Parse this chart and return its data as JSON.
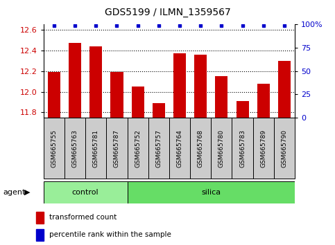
{
  "title": "GDS5199 / ILMN_1359567",
  "samples": [
    "GSM665755",
    "GSM665763",
    "GSM665781",
    "GSM665787",
    "GSM665752",
    "GSM665757",
    "GSM665764",
    "GSM665768",
    "GSM665780",
    "GSM665783",
    "GSM665789",
    "GSM665790"
  ],
  "transformed_counts": [
    12.19,
    12.47,
    12.44,
    12.19,
    12.05,
    11.89,
    12.37,
    12.36,
    12.15,
    11.91,
    12.08,
    12.3
  ],
  "percentile_ranks": [
    100,
    100,
    100,
    100,
    100,
    100,
    100,
    100,
    100,
    100,
    100,
    100
  ],
  "control_count": 4,
  "silica_count": 8,
  "ylim_left": [
    11.75,
    12.65
  ],
  "ylim_right": [
    0,
    100
  ],
  "yticks_left": [
    11.8,
    12.0,
    12.2,
    12.4,
    12.6
  ],
  "yticks_right": [
    0,
    25,
    50,
    75,
    100
  ],
  "bar_color": "#cc0000",
  "dot_color": "#0000cc",
  "control_color": "#99ee99",
  "silica_color": "#66dd66",
  "sample_label_bg": "#cccccc",
  "yticklabel_left_color": "#cc0000",
  "yticklabel_right_color": "#0000cc",
  "bar_width": 0.6,
  "legend_red_label": "transformed count",
  "legend_blue_label": "percentile rank within the sample",
  "agent_label": "agent",
  "control_label": "control",
  "silica_label": "silica"
}
